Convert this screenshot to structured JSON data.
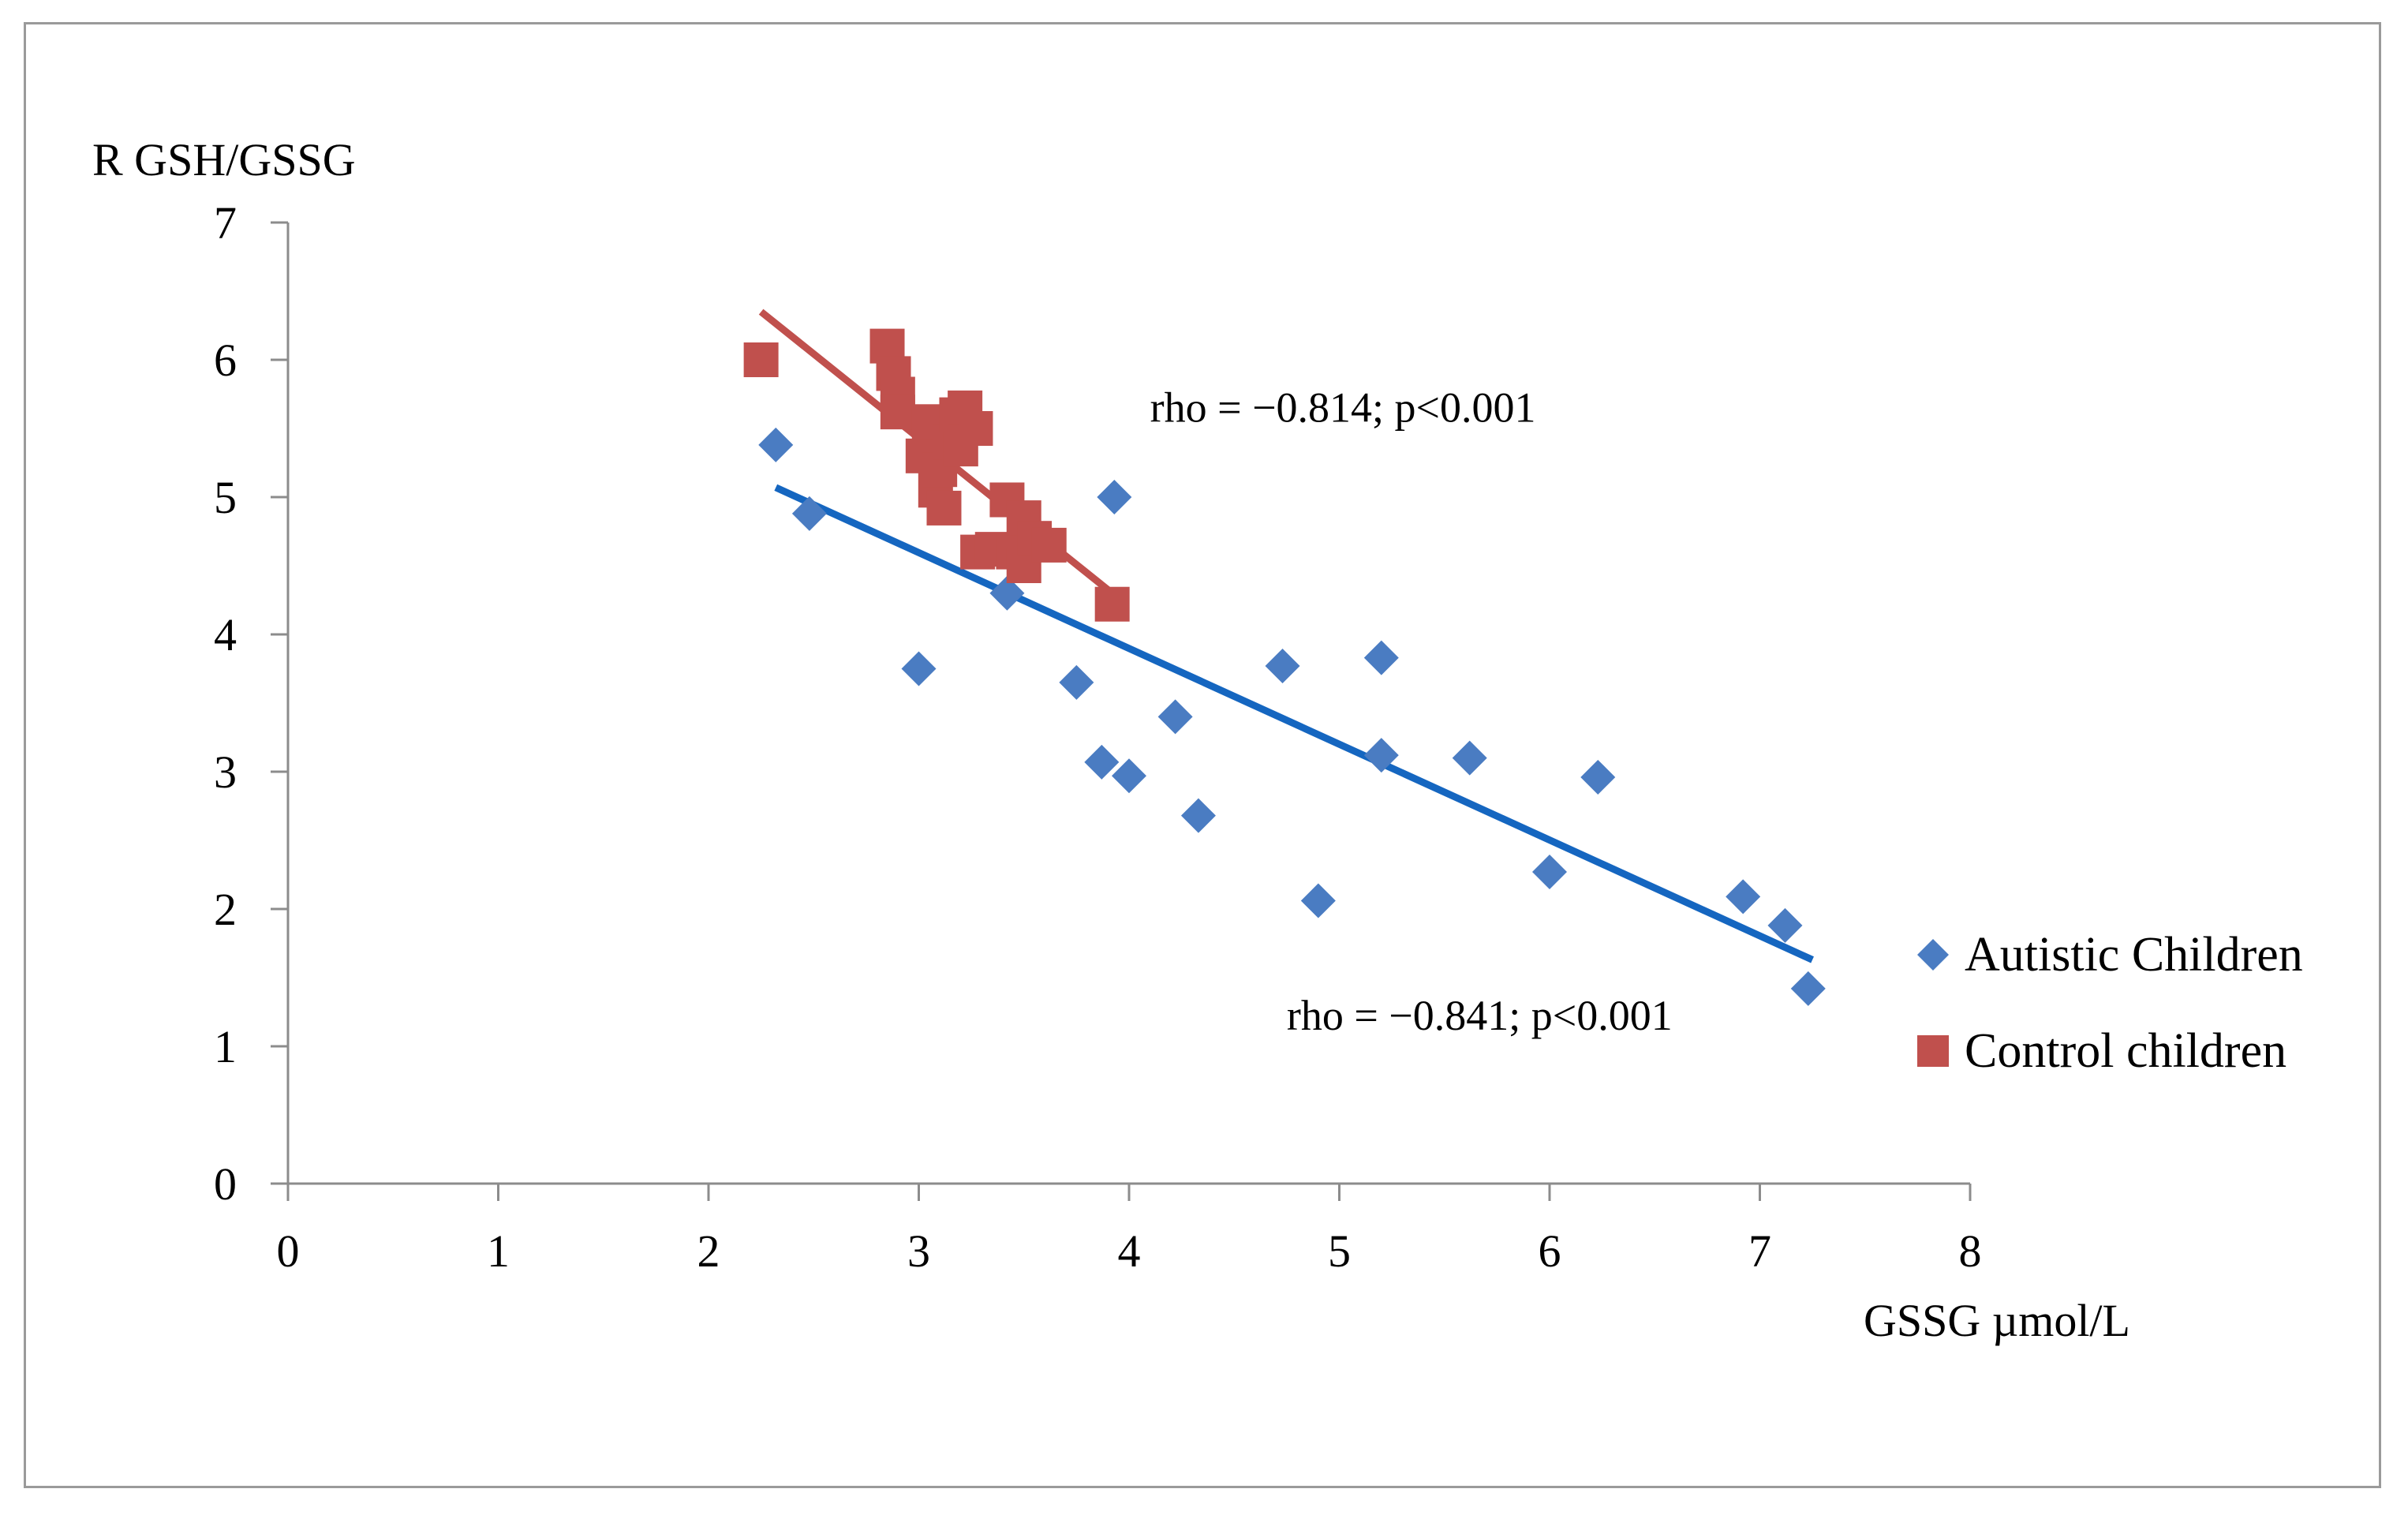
{
  "chart_data": {
    "type": "scatter",
    "title": "",
    "xlabel": "GSSG µmol/L",
    "ylabel": "R GSH/GSSG",
    "xlim": [
      0,
      8
    ],
    "ylim": [
      0,
      7
    ],
    "xticks": [
      "0",
      "1",
      "2",
      "3",
      "4",
      "5",
      "6",
      "7",
      "8"
    ],
    "yticks": [
      "0",
      "1",
      "2",
      "3",
      "4",
      "5",
      "6",
      "7"
    ],
    "grid": false,
    "legend_position": "right",
    "series": [
      {
        "name": "Autistic Children",
        "marker": "diamond",
        "color": "#4a7cc2",
        "points": [
          [
            2.32,
            5.38
          ],
          [
            2.48,
            4.88
          ],
          [
            3.0,
            3.75
          ],
          [
            3.42,
            4.3
          ],
          [
            3.75,
            3.65
          ],
          [
            3.87,
            3.07
          ],
          [
            3.93,
            5.0
          ],
          [
            4.0,
            2.97
          ],
          [
            4.22,
            3.4
          ],
          [
            4.33,
            2.68
          ],
          [
            4.73,
            3.77
          ],
          [
            4.9,
            2.06
          ],
          [
            5.2,
            3.83
          ],
          [
            5.2,
            3.12
          ],
          [
            5.62,
            3.1
          ],
          [
            6.0,
            2.27
          ],
          [
            6.23,
            2.96
          ],
          [
            6.92,
            2.09
          ],
          [
            7.12,
            1.88
          ],
          [
            7.23,
            1.42
          ]
        ],
        "trend": {
          "x": [
            2.32,
            7.25
          ],
          "y": [
            5.07,
            1.63
          ],
          "color": "#1566c0"
        }
      },
      {
        "name": "Control children",
        "marker": "square",
        "color": "#c0504d",
        "points": [
          [
            2.25,
            6.0
          ],
          [
            2.85,
            6.1
          ],
          [
            2.88,
            5.9
          ],
          [
            2.9,
            5.75
          ],
          [
            2.9,
            5.62
          ],
          [
            3.02,
            5.3
          ],
          [
            3.05,
            5.55
          ],
          [
            3.08,
            5.05
          ],
          [
            3.1,
            5.2
          ],
          [
            3.12,
            4.92
          ],
          [
            3.15,
            5.4
          ],
          [
            3.18,
            5.6
          ],
          [
            3.2,
            5.35
          ],
          [
            3.22,
            5.65
          ],
          [
            3.27,
            5.5
          ],
          [
            3.28,
            4.6
          ],
          [
            3.35,
            4.62
          ],
          [
            3.42,
            4.98
          ],
          [
            3.45,
            4.6
          ],
          [
            3.5,
            4.85
          ],
          [
            3.5,
            4.5
          ],
          [
            3.55,
            4.7
          ],
          [
            3.62,
            4.65
          ],
          [
            3.92,
            4.22
          ]
        ],
        "trend": {
          "x": [
            2.25,
            3.92
          ],
          "y": [
            6.35,
            4.3
          ],
          "color": "#c0504d"
        }
      }
    ],
    "annotations": [
      {
        "text": "rho = −0.814; p<0.001",
        "x": 4.1,
        "y": 5.55
      },
      {
        "text": "rho = −0.841; p<0.001",
        "x": 4.75,
        "y": 1.12
      }
    ]
  }
}
